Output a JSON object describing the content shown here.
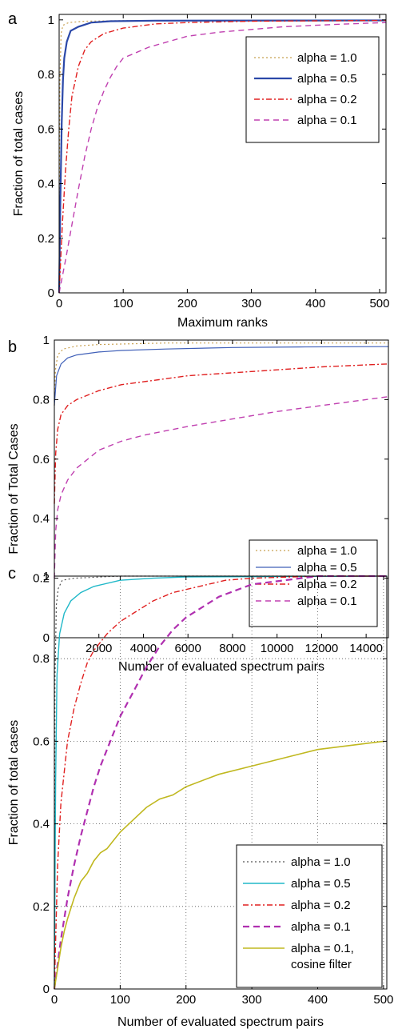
{
  "chart_data": [
    {
      "panel": "a",
      "type": "line",
      "xlabel": "Maximum ranks",
      "ylabel": "Fraction of total cases",
      "xlim": [
        0,
        510
      ],
      "ylim": [
        0,
        1.02
      ],
      "xticks": [
        0,
        100,
        200,
        300,
        400,
        500
      ],
      "yticks": [
        0,
        0.2,
        0.4,
        0.6,
        0.8,
        1
      ],
      "ytick_labels": [
        "0",
        "0.2",
        "0.4",
        "0.6",
        "0.8",
        "1"
      ],
      "grid": false,
      "legend_position": "top-right",
      "series": [
        {
          "name": "alpha = 1.0",
          "color": "#c8a050",
          "dash": "2,3",
          "width": 1.2,
          "points": [
            [
              0,
              0
            ],
            [
              1,
              0.75
            ],
            [
              3,
              0.95
            ],
            [
              6,
              0.98
            ],
            [
              15,
              0.99
            ],
            [
              40,
              0.995
            ],
            [
              100,
              0.997
            ],
            [
              510,
              0.998
            ]
          ]
        },
        {
          "name": "alpha = 0.5",
          "color": "#2b48a8",
          "dash": "",
          "width": 2.2,
          "points": [
            [
              0,
              0
            ],
            [
              2,
              0.35
            ],
            [
              4,
              0.62
            ],
            [
              6,
              0.78
            ],
            [
              8,
              0.86
            ],
            [
              12,
              0.92
            ],
            [
              18,
              0.96
            ],
            [
              30,
              0.975
            ],
            [
              50,
              0.99
            ],
            [
              80,
              0.995
            ],
            [
              150,
              0.997
            ],
            [
              510,
              0.998
            ]
          ]
        },
        {
          "name": "alpha = 0.2",
          "color": "#e02020",
          "dash": "7,3,2,3",
          "width": 1.4,
          "points": [
            [
              0,
              0
            ],
            [
              5,
              0.25
            ],
            [
              10,
              0.45
            ],
            [
              15,
              0.6
            ],
            [
              20,
              0.72
            ],
            [
              30,
              0.83
            ],
            [
              40,
              0.89
            ],
            [
              50,
              0.92
            ],
            [
              70,
              0.95
            ],
            [
              100,
              0.97
            ],
            [
              150,
              0.985
            ],
            [
              200,
              0.99
            ],
            [
              300,
              0.995
            ],
            [
              510,
              0.998
            ]
          ]
        },
        {
          "name": "alpha = 0.1",
          "color": "#c040b0",
          "dash": "7,5",
          "width": 1.4,
          "points": [
            [
              0,
              0
            ],
            [
              10,
              0.12
            ],
            [
              20,
              0.25
            ],
            [
              30,
              0.38
            ],
            [
              40,
              0.5
            ],
            [
              50,
              0.6
            ],
            [
              60,
              0.68
            ],
            [
              70,
              0.74
            ],
            [
              80,
              0.79
            ],
            [
              90,
              0.83
            ],
            [
              100,
              0.86
            ],
            [
              120,
              0.88
            ],
            [
              140,
              0.9
            ],
            [
              170,
              0.92
            ],
            [
              200,
              0.94
            ],
            [
              250,
              0.955
            ],
            [
              300,
              0.965
            ],
            [
              350,
              0.975
            ],
            [
              400,
              0.98
            ],
            [
              450,
              0.985
            ],
            [
              510,
              0.99
            ]
          ]
        }
      ]
    },
    {
      "panel": "b",
      "type": "line",
      "xlabel": "Number of evaluated spectrum pairs",
      "ylabel": "Fraction of Total Cases",
      "xlim": [
        0,
        15000
      ],
      "ylim": [
        0,
        1.0
      ],
      "xticks": [
        2000,
        4000,
        6000,
        8000,
        10000,
        12000,
        14000
      ],
      "yticks": [
        0,
        0.2,
        0.4,
        0.6,
        0.8,
        1
      ],
      "ytick_labels": [
        "0",
        "0.2",
        "0.4",
        "0.6",
        "0.8",
        "1"
      ],
      "grid": false,
      "legend_position": "bottom-right",
      "series": [
        {
          "name": "alpha = 1.0",
          "color": "#c8a050",
          "dash": "2,3",
          "width": 1.2,
          "points": [
            [
              0,
              0.78
            ],
            [
              50,
              0.9
            ],
            [
              150,
              0.95
            ],
            [
              400,
              0.97
            ],
            [
              1000,
              0.98
            ],
            [
              2000,
              0.985
            ],
            [
              5000,
              0.99
            ],
            [
              10000,
              0.99
            ],
            [
              15000,
              0.99
            ]
          ]
        },
        {
          "name": "alpha = 0.5",
          "color": "#4060b8",
          "dash": "",
          "width": 1.2,
          "points": [
            [
              0,
              0.78
            ],
            [
              100,
              0.88
            ],
            [
              300,
              0.92
            ],
            [
              600,
              0.94
            ],
            [
              1000,
              0.95
            ],
            [
              2000,
              0.96
            ],
            [
              3000,
              0.965
            ],
            [
              5000,
              0.97
            ],
            [
              8000,
              0.975
            ],
            [
              11000,
              0.977
            ],
            [
              15000,
              0.978
            ]
          ]
        },
        {
          "name": "alpha = 0.2",
          "color": "#e02020",
          "dash": "7,3,2,3",
          "width": 1.4,
          "points": [
            [
              0,
              0.45
            ],
            [
              60,
              0.62
            ],
            [
              150,
              0.7
            ],
            [
              300,
              0.75
            ],
            [
              600,
              0.78
            ],
            [
              1000,
              0.8
            ],
            [
              2000,
              0.83
            ],
            [
              3000,
              0.85
            ],
            [
              4000,
              0.86
            ],
            [
              6000,
              0.88
            ],
            [
              8000,
              0.89
            ],
            [
              10000,
              0.9
            ],
            [
              12000,
              0.91
            ],
            [
              15000,
              0.92
            ]
          ]
        },
        {
          "name": "alpha = 0.1",
          "color": "#c040b0",
          "dash": "7,5",
          "width": 1.4,
          "points": [
            [
              0,
              0.2
            ],
            [
              60,
              0.36
            ],
            [
              150,
              0.43
            ],
            [
              300,
              0.48
            ],
            [
              600,
              0.53
            ],
            [
              1000,
              0.57
            ],
            [
              1500,
              0.6
            ],
            [
              2000,
              0.63
            ],
            [
              3000,
              0.66
            ],
            [
              4000,
              0.68
            ],
            [
              6000,
              0.71
            ],
            [
              8000,
              0.735
            ],
            [
              10000,
              0.76
            ],
            [
              12000,
              0.78
            ],
            [
              15000,
              0.81
            ]
          ]
        }
      ]
    },
    {
      "panel": "c",
      "type": "line",
      "xlabel": "Number of evaluated spectrum pairs",
      "ylabel": "Fraction of total cases",
      "xlim": [
        0,
        505
      ],
      "ylim": [
        0,
        1.0
      ],
      "xticks": [
        0,
        100,
        200,
        300,
        400,
        500
      ],
      "yticks": [
        0,
        0.2,
        0.4,
        0.6,
        0.8,
        1
      ],
      "ytick_labels": [
        "0",
        "0.2",
        "0.4",
        "0.6",
        "0.8",
        "1"
      ],
      "grid": true,
      "legend_position": "bottom-right",
      "series": [
        {
          "name": "alpha = 1.0",
          "color": "#555555",
          "dash": "2,3",
          "width": 1.2,
          "points": [
            [
              0,
              0
            ],
            [
              1,
              0.75
            ],
            [
              3,
              0.93
            ],
            [
              6,
              0.97
            ],
            [
              12,
              0.99
            ],
            [
              30,
              0.995
            ],
            [
              100,
              1
            ],
            [
              505,
              1
            ]
          ]
        },
        {
          "name": "alpha = 0.5",
          "color": "#20b8c8",
          "dash": "",
          "width": 1.4,
          "points": [
            [
              0,
              0
            ],
            [
              2,
              0.5
            ],
            [
              4,
              0.76
            ],
            [
              8,
              0.86
            ],
            [
              15,
              0.91
            ],
            [
              25,
              0.94
            ],
            [
              40,
              0.96
            ],
            [
              60,
              0.975
            ],
            [
              100,
              0.99
            ],
            [
              150,
              0.995
            ],
            [
              200,
              0.998
            ],
            [
              505,
              1
            ]
          ]
        },
        {
          "name": "alpha = 0.2",
          "color": "#e02020",
          "dash": "7,3,2,3",
          "width": 1.4,
          "points": [
            [
              0,
              0
            ],
            [
              5,
              0.3
            ],
            [
              10,
              0.45
            ],
            [
              20,
              0.6
            ],
            [
              30,
              0.68
            ],
            [
              40,
              0.74
            ],
            [
              50,
              0.79
            ],
            [
              60,
              0.82
            ],
            [
              70,
              0.84
            ],
            [
              80,
              0.86
            ],
            [
              100,
              0.89
            ],
            [
              120,
              0.91
            ],
            [
              150,
              0.94
            ],
            [
              180,
              0.96
            ],
            [
              220,
              0.975
            ],
            [
              260,
              0.99
            ],
            [
              300,
              0.995
            ],
            [
              400,
              1
            ],
            [
              505,
              1
            ]
          ]
        },
        {
          "name": "alpha = 0.1",
          "color": "#b030b0",
          "dash": "8,5",
          "width": 2.2,
          "points": [
            [
              0,
              0
            ],
            [
              10,
              0.12
            ],
            [
              20,
              0.22
            ],
            [
              30,
              0.3
            ],
            [
              40,
              0.37
            ],
            [
              50,
              0.43
            ],
            [
              60,
              0.49
            ],
            [
              70,
              0.54
            ],
            [
              80,
              0.58
            ],
            [
              90,
              0.62
            ],
            [
              100,
              0.66
            ],
            [
              120,
              0.72
            ],
            [
              140,
              0.78
            ],
            [
              160,
              0.83
            ],
            [
              180,
              0.87
            ],
            [
              200,
              0.9
            ],
            [
              220,
              0.92
            ],
            [
              250,
              0.95
            ],
            [
              300,
              0.98
            ],
            [
              350,
              0.99
            ],
            [
              400,
              1
            ],
            [
              505,
              1
            ]
          ]
        },
        {
          "name": "alpha = 0.1,\ncosine filter",
          "color": "#c0b820",
          "dash": "",
          "width": 1.6,
          "points": [
            [
              0,
              0
            ],
            [
              5,
              0.05
            ],
            [
              10,
              0.1
            ],
            [
              15,
              0.14
            ],
            [
              20,
              0.17
            ],
            [
              30,
              0.22
            ],
            [
              40,
              0.26
            ],
            [
              50,
              0.28
            ],
            [
              60,
              0.31
            ],
            [
              70,
              0.33
            ],
            [
              80,
              0.34
            ],
            [
              90,
              0.36
            ],
            [
              100,
              0.38
            ],
            [
              120,
              0.41
            ],
            [
              140,
              0.44
            ],
            [
              160,
              0.46
            ],
            [
              180,
              0.47
            ],
            [
              200,
              0.49
            ],
            [
              250,
              0.52
            ],
            [
              300,
              0.54
            ],
            [
              350,
              0.56
            ],
            [
              400,
              0.58
            ],
            [
              450,
              0.59
            ],
            [
              500,
              0.6
            ]
          ]
        }
      ]
    }
  ]
}
